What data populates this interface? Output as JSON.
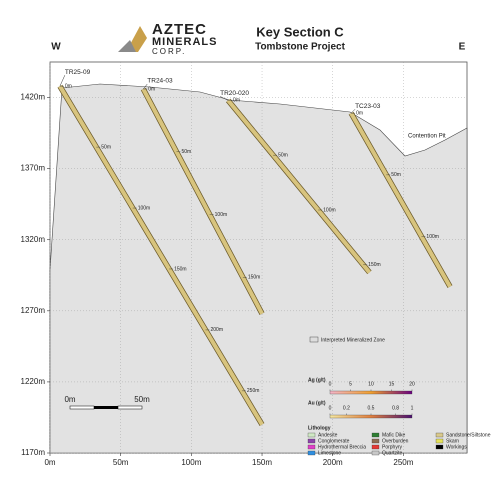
{
  "header": {
    "logo_line1": "AZTEC",
    "logo_line2": "MINERALS",
    "logo_line3": "CORP.",
    "title": "Key Section C",
    "subtitle": "Tombstone Project",
    "west": "W",
    "east": "E"
  },
  "chart_data": {
    "type": "section",
    "xlim": [
      0,
      295
    ],
    "ylim": [
      1170,
      1445
    ],
    "xticks": [
      {
        "value": 0,
        "label": "0m"
      },
      {
        "value": 50,
        "label": "50m"
      },
      {
        "value": 100,
        "label": "100m"
      },
      {
        "value": 150,
        "label": "150m"
      },
      {
        "value": 200,
        "label": "200m"
      },
      {
        "value": 250,
        "label": "250m"
      }
    ],
    "yticks": [
      {
        "value": 1170,
        "label": "1170m"
      },
      {
        "value": 1220,
        "label": "1220m"
      },
      {
        "value": 1270,
        "label": "1270m"
      },
      {
        "value": 1320,
        "label": "1320m"
      },
      {
        "value": 1370,
        "label": "1370m"
      },
      {
        "value": 1420,
        "label": "1420m"
      }
    ],
    "grid": true,
    "holes": [
      {
        "name": "TR25-09",
        "x": [
          7,
          150
        ],
        "y": [
          1428,
          1190
        ],
        "depths": [
          {
            "value": 0,
            "label": "0m"
          },
          {
            "value": 50,
            "label": "50m"
          },
          {
            "value": 100,
            "label": "100m"
          },
          {
            "value": 150,
            "label": "150m"
          },
          {
            "value": 200,
            "label": "200m"
          },
          {
            "value": 250,
            "label": "250m"
          }
        ]
      },
      {
        "name": "TR24-03",
        "x": [
          66,
          150
        ],
        "y": [
          1426,
          1268
        ],
        "depths": [
          {
            "value": 0,
            "label": "0m"
          },
          {
            "value": 50,
            "label": "50m"
          },
          {
            "value": 100,
            "label": "100m"
          },
          {
            "value": 150,
            "label": "150m"
          }
        ]
      },
      {
        "name": "TR20-020",
        "x": [
          126,
          226
        ],
        "y": [
          1418,
          1297
        ],
        "depths": [
          {
            "value": 0,
            "label": "0m"
          },
          {
            "value": 50,
            "label": "50m"
          },
          {
            "value": 100,
            "label": "100m"
          },
          {
            "value": 150,
            "label": "150m"
          }
        ]
      },
      {
        "name": "TC23-03",
        "x": [
          213,
          283
        ],
        "y": [
          1409,
          1287
        ],
        "depths": [
          {
            "value": 0,
            "label": "0m"
          },
          {
            "value": 50,
            "label": "50m"
          },
          {
            "value": 100,
            "label": "100m"
          }
        ]
      }
    ],
    "annotation": "Contention Pit"
  },
  "legend": {
    "zone": "Interpreted Mineralized Zone",
    "ag": {
      "label": "Ag (g/t)",
      "ticks": [
        0,
        5,
        10,
        15,
        20
      ]
    },
    "au": {
      "label": "Au (g/t)",
      "ticks": [
        0,
        0.2,
        0.5,
        0.8,
        1
      ]
    },
    "lithology_title": "Lithology",
    "lithology": [
      {
        "name": "Andesite",
        "color": "#cfe8c4"
      },
      {
        "name": "Conglomerate",
        "color": "#8e44ad"
      },
      {
        "name": "Hydrothermal Breccia",
        "color": "#e040c8"
      },
      {
        "name": "Limestone",
        "color": "#2f8fe0"
      },
      {
        "name": "Mafic Dike",
        "color": "#2e7d32"
      },
      {
        "name": "Overburden",
        "color": "#8d6e53"
      },
      {
        "name": "Porphyry",
        "color": "#e53935"
      },
      {
        "name": "Quartzite",
        "color": "#c8c8c8"
      },
      {
        "name": "Sandstone/Siltstone",
        "color": "#d9c98c"
      },
      {
        "name": "Skarn",
        "color": "#e6e25a"
      },
      {
        "name": "Workings",
        "color": "#000000"
      }
    ],
    "scale_start": "0m",
    "scale_end": "50m"
  }
}
